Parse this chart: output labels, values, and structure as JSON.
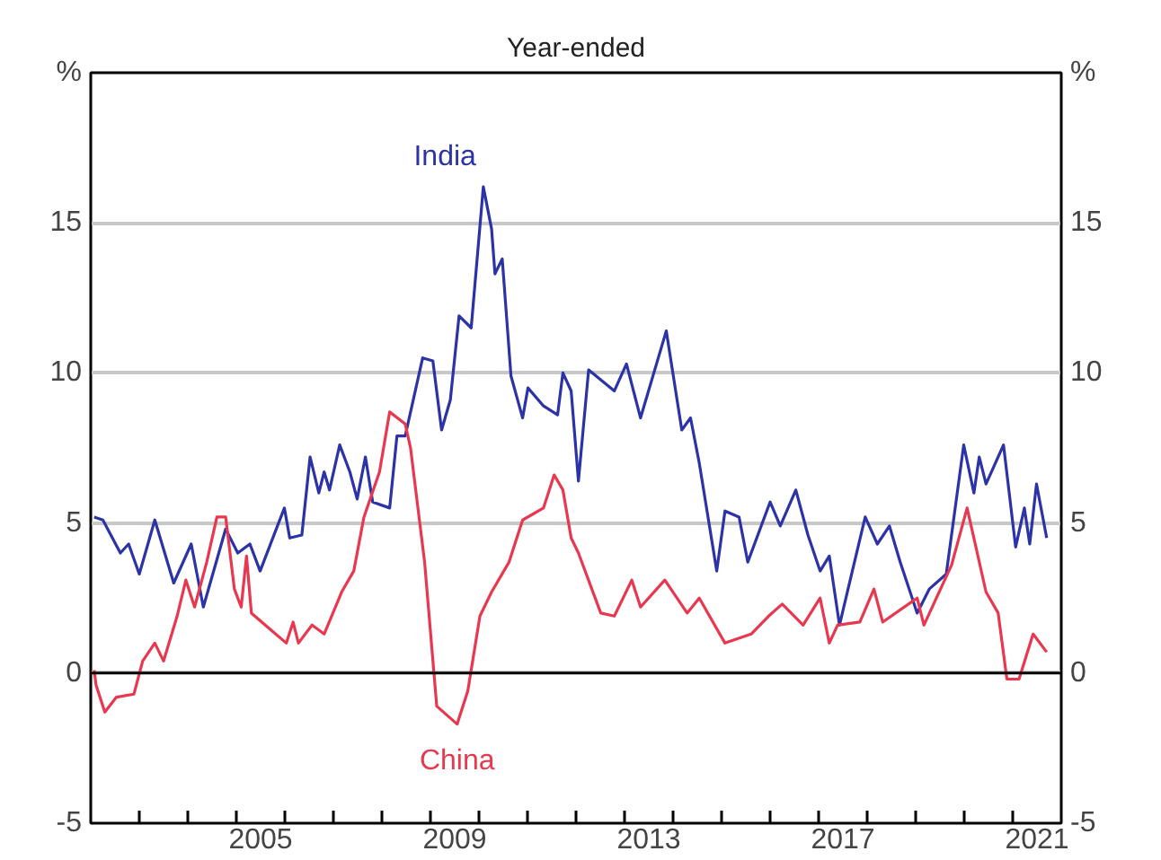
{
  "chart_data": {
    "type": "line",
    "subtitle": "Year-ended",
    "ylabel": "%",
    "y2label": "%",
    "xlim": [
      2002,
      2022
    ],
    "ylim": [
      -5,
      20
    ],
    "y2lim": [
      -5,
      20
    ],
    "xticks": [
      {
        "value": 2003,
        "label": null
      },
      {
        "value": 2004,
        "label": null
      },
      {
        "value": 2005,
        "label": null
      },
      {
        "value": 2006,
        "label": null
      },
      {
        "value": 2007,
        "label": null
      },
      {
        "value": 2008,
        "label": null
      },
      {
        "value": 2009,
        "label": null
      },
      {
        "value": 2010,
        "label": null
      },
      {
        "value": 2011,
        "label": null
      },
      {
        "value": 2012,
        "label": null
      },
      {
        "value": 2013,
        "label": null
      },
      {
        "value": 2014,
        "label": null
      },
      {
        "value": 2015,
        "label": null
      },
      {
        "value": 2016,
        "label": null
      },
      {
        "value": 2017,
        "label": null
      },
      {
        "value": 2018,
        "label": null
      },
      {
        "value": 2019,
        "label": null
      },
      {
        "value": 2020,
        "label": null
      },
      {
        "value": 2021,
        "label": null
      },
      {
        "value": 2005.5,
        "label": "2005"
      },
      {
        "value": 2009.5,
        "label": "2009"
      },
      {
        "value": 2013.5,
        "label": "2013"
      },
      {
        "value": 2017.5,
        "label": "2017"
      },
      {
        "value": 2021.5,
        "label": "2021"
      }
    ],
    "yticks": [
      -5,
      0,
      5,
      10,
      15
    ],
    "y2ticks": [
      -5,
      0,
      5,
      10,
      15
    ],
    "grid": "y",
    "line_style": "solid",
    "ref_lines": [
      {
        "axis": "y",
        "value": 0,
        "color": "#000000"
      }
    ],
    "series": [
      {
        "name": "India",
        "color": "#2b33a6",
        "x": [
          2002.07,
          2002.25,
          2002.61,
          2002.78,
          2003.0,
          2003.32,
          2003.71,
          2004.07,
          2004.32,
          2004.78,
          2005.03,
          2005.28,
          2005.49,
          2005.99,
          2006.1,
          2006.35,
          2006.52,
          2006.7,
          2006.81,
          2006.92,
          2007.13,
          2007.34,
          2007.49,
          2007.66,
          2007.81,
          2008.16,
          2008.31,
          2008.48,
          2008.84,
          2009.05,
          2009.23,
          2009.41,
          2009.59,
          2009.84,
          2010.09,
          2010.26,
          2010.33,
          2010.48,
          2010.66,
          2010.9,
          2011.01,
          2011.33,
          2011.62,
          2011.73,
          2011.9,
          2012.05,
          2012.26,
          2012.79,
          2013.04,
          2013.33,
          2013.86,
          2014.18,
          2014.36,
          2014.54,
          2014.9,
          2015.07,
          2015.36,
          2015.54,
          2016.0,
          2016.21,
          2016.53,
          2016.78,
          2017.03,
          2017.22,
          2017.43,
          2017.68,
          2017.96,
          2018.21,
          2018.46,
          2018.68,
          2019.03,
          2019.28,
          2019.63,
          2019.99,
          2020.2,
          2020.31,
          2020.45,
          2020.81,
          2021.06,
          2021.24,
          2021.35,
          2021.49,
          2021.7
        ],
        "values": [
          5.2,
          5.1,
          4.0,
          4.3,
          3.3,
          5.1,
          3.0,
          4.3,
          2.2,
          4.8,
          4.0,
          4.3,
          3.4,
          5.5,
          4.5,
          4.6,
          7.2,
          6.0,
          6.7,
          6.1,
          7.6,
          6.7,
          5.8,
          7.2,
          5.7,
          5.5,
          7.9,
          7.9,
          10.5,
          10.4,
          8.1,
          9.1,
          11.9,
          11.5,
          16.2,
          14.8,
          13.3,
          13.8,
          9.9,
          8.5,
          9.5,
          8.9,
          8.6,
          10.0,
          9.4,
          6.4,
          10.1,
          9.4,
          10.3,
          8.5,
          11.4,
          8.1,
          8.5,
          7.0,
          3.4,
          5.4,
          5.2,
          3.7,
          5.7,
          4.9,
          6.1,
          4.6,
          3.4,
          3.9,
          1.6,
          3.3,
          5.2,
          4.3,
          4.9,
          3.7,
          2.0,
          2.8,
          3.3,
          7.6,
          6.0,
          7.2,
          6.3,
          7.6,
          4.2,
          5.5,
          4.3,
          6.3,
          4.5
        ]
      },
      {
        "name": "China",
        "color": "#e8384f",
        "x": [
          2002.07,
          2002.11,
          2002.29,
          2002.53,
          2002.89,
          2003.07,
          2003.32,
          2003.5,
          2003.78,
          2003.96,
          2004.14,
          2004.39,
          2004.6,
          2004.78,
          2004.96,
          2005.1,
          2005.21,
          2005.31,
          2005.74,
          2006.03,
          2006.17,
          2006.28,
          2006.56,
          2006.81,
          2007.17,
          2007.42,
          2007.63,
          2007.95,
          2008.16,
          2008.48,
          2008.59,
          2008.88,
          2009.13,
          2009.55,
          2009.77,
          2010.02,
          2010.26,
          2010.62,
          2010.9,
          2011.33,
          2011.55,
          2011.73,
          2011.9,
          2012.05,
          2012.51,
          2012.79,
          2013.15,
          2013.33,
          2013.83,
          2014.29,
          2014.54,
          2015.07,
          2015.61,
          2015.97,
          2016.25,
          2016.68,
          2017.03,
          2017.22,
          2017.39,
          2017.85,
          2018.14,
          2018.32,
          2019.03,
          2019.17,
          2019.74,
          2020.06,
          2020.45,
          2020.7,
          2020.88,
          2021.13,
          2021.42,
          2021.7
        ],
        "values": [
          0.1,
          -0.4,
          -1.3,
          -0.8,
          -0.7,
          0.4,
          1.0,
          0.4,
          1.9,
          3.1,
          2.2,
          3.7,
          5.2,
          5.2,
          2.8,
          2.2,
          3.9,
          2.0,
          1.4,
          1.0,
          1.7,
          1.0,
          1.6,
          1.3,
          2.7,
          3.4,
          5.2,
          6.7,
          8.7,
          8.3,
          7.5,
          3.7,
          -1.1,
          -1.7,
          -0.6,
          1.9,
          2.7,
          3.7,
          5.1,
          5.5,
          6.6,
          6.1,
          4.5,
          4.0,
          2.0,
          1.9,
          3.1,
          2.2,
          3.1,
          2.0,
          2.5,
          1.0,
          1.3,
          1.9,
          2.3,
          1.6,
          2.5,
          1.0,
          1.6,
          1.7,
          2.8,
          1.7,
          2.5,
          1.6,
          3.6,
          5.5,
          2.7,
          2.0,
          -0.2,
          -0.2,
          1.3,
          0.7
        ]
      }
    ]
  }
}
